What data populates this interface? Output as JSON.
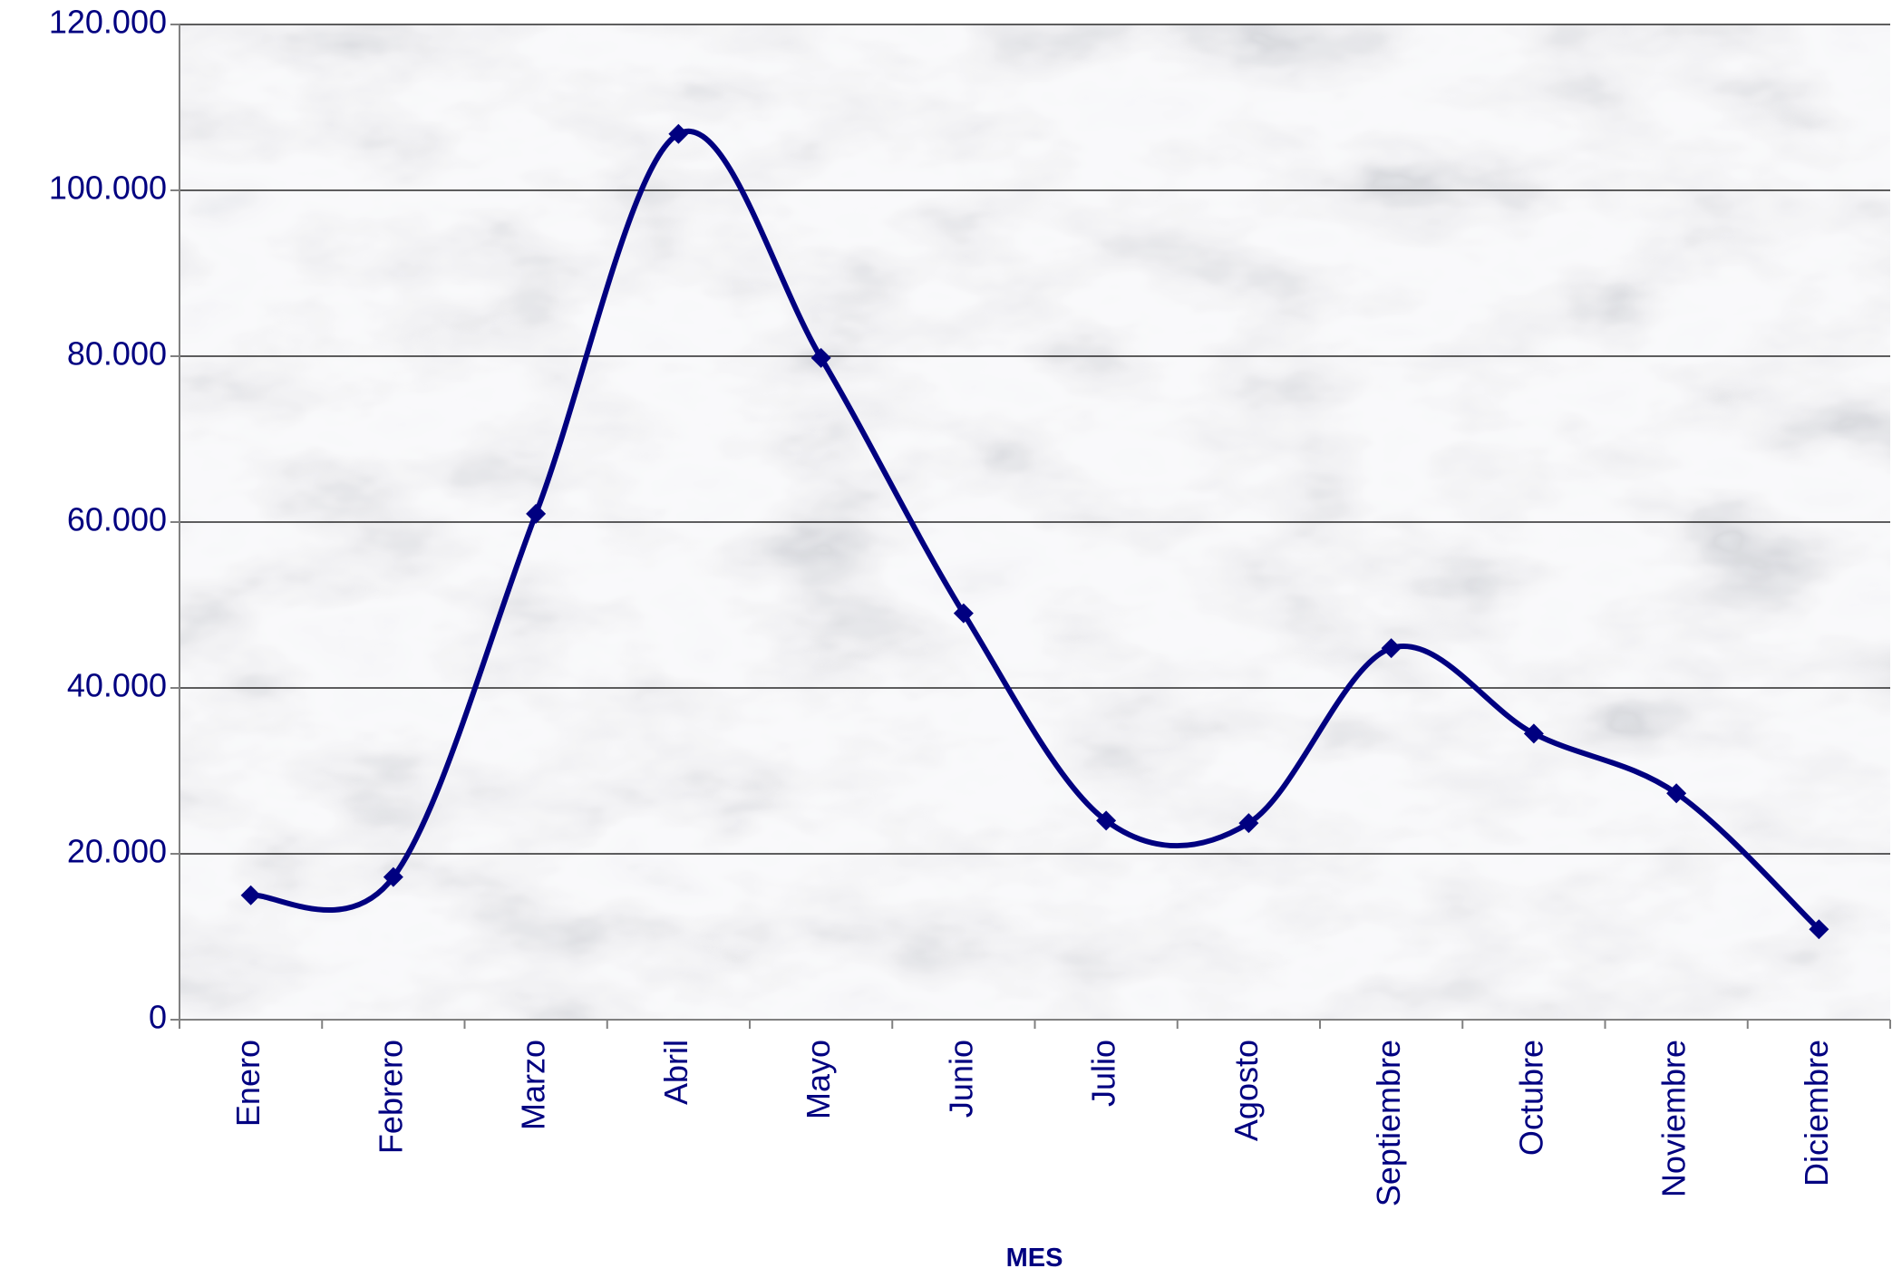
{
  "chart_data": {
    "type": "line",
    "smooth": true,
    "title": "",
    "xlabel": "MES",
    "ylabel": "",
    "categories": [
      "Enero",
      "Febrero",
      "Marzo",
      "Abril",
      "Mayo",
      "Junio",
      "Julio",
      "Agosto",
      "Septiembre",
      "Octubre",
      "Noviembre",
      "Diciembre"
    ],
    "series": [
      {
        "values": [
          15000,
          17200,
          61000,
          106800,
          79800,
          49000,
          24000,
          23700,
          44800,
          34500,
          27300,
          10900
        ],
        "marker": "diamond",
        "color": "#000080"
      }
    ],
    "ylim": [
      0,
      120000
    ],
    "yticks": [
      0,
      20000,
      40000,
      60000,
      80000,
      100000,
      120000
    ],
    "ytick_labels": [
      "0",
      "20.000",
      "40.000",
      "60.000",
      "80.000",
      "100.000",
      "120.000"
    ],
    "grid": "horizontal",
    "legend": "none",
    "background": "marble-texture",
    "colors": {
      "text": "#000080",
      "line": "#000080",
      "grid": "#000000",
      "axis": "#808080"
    }
  }
}
